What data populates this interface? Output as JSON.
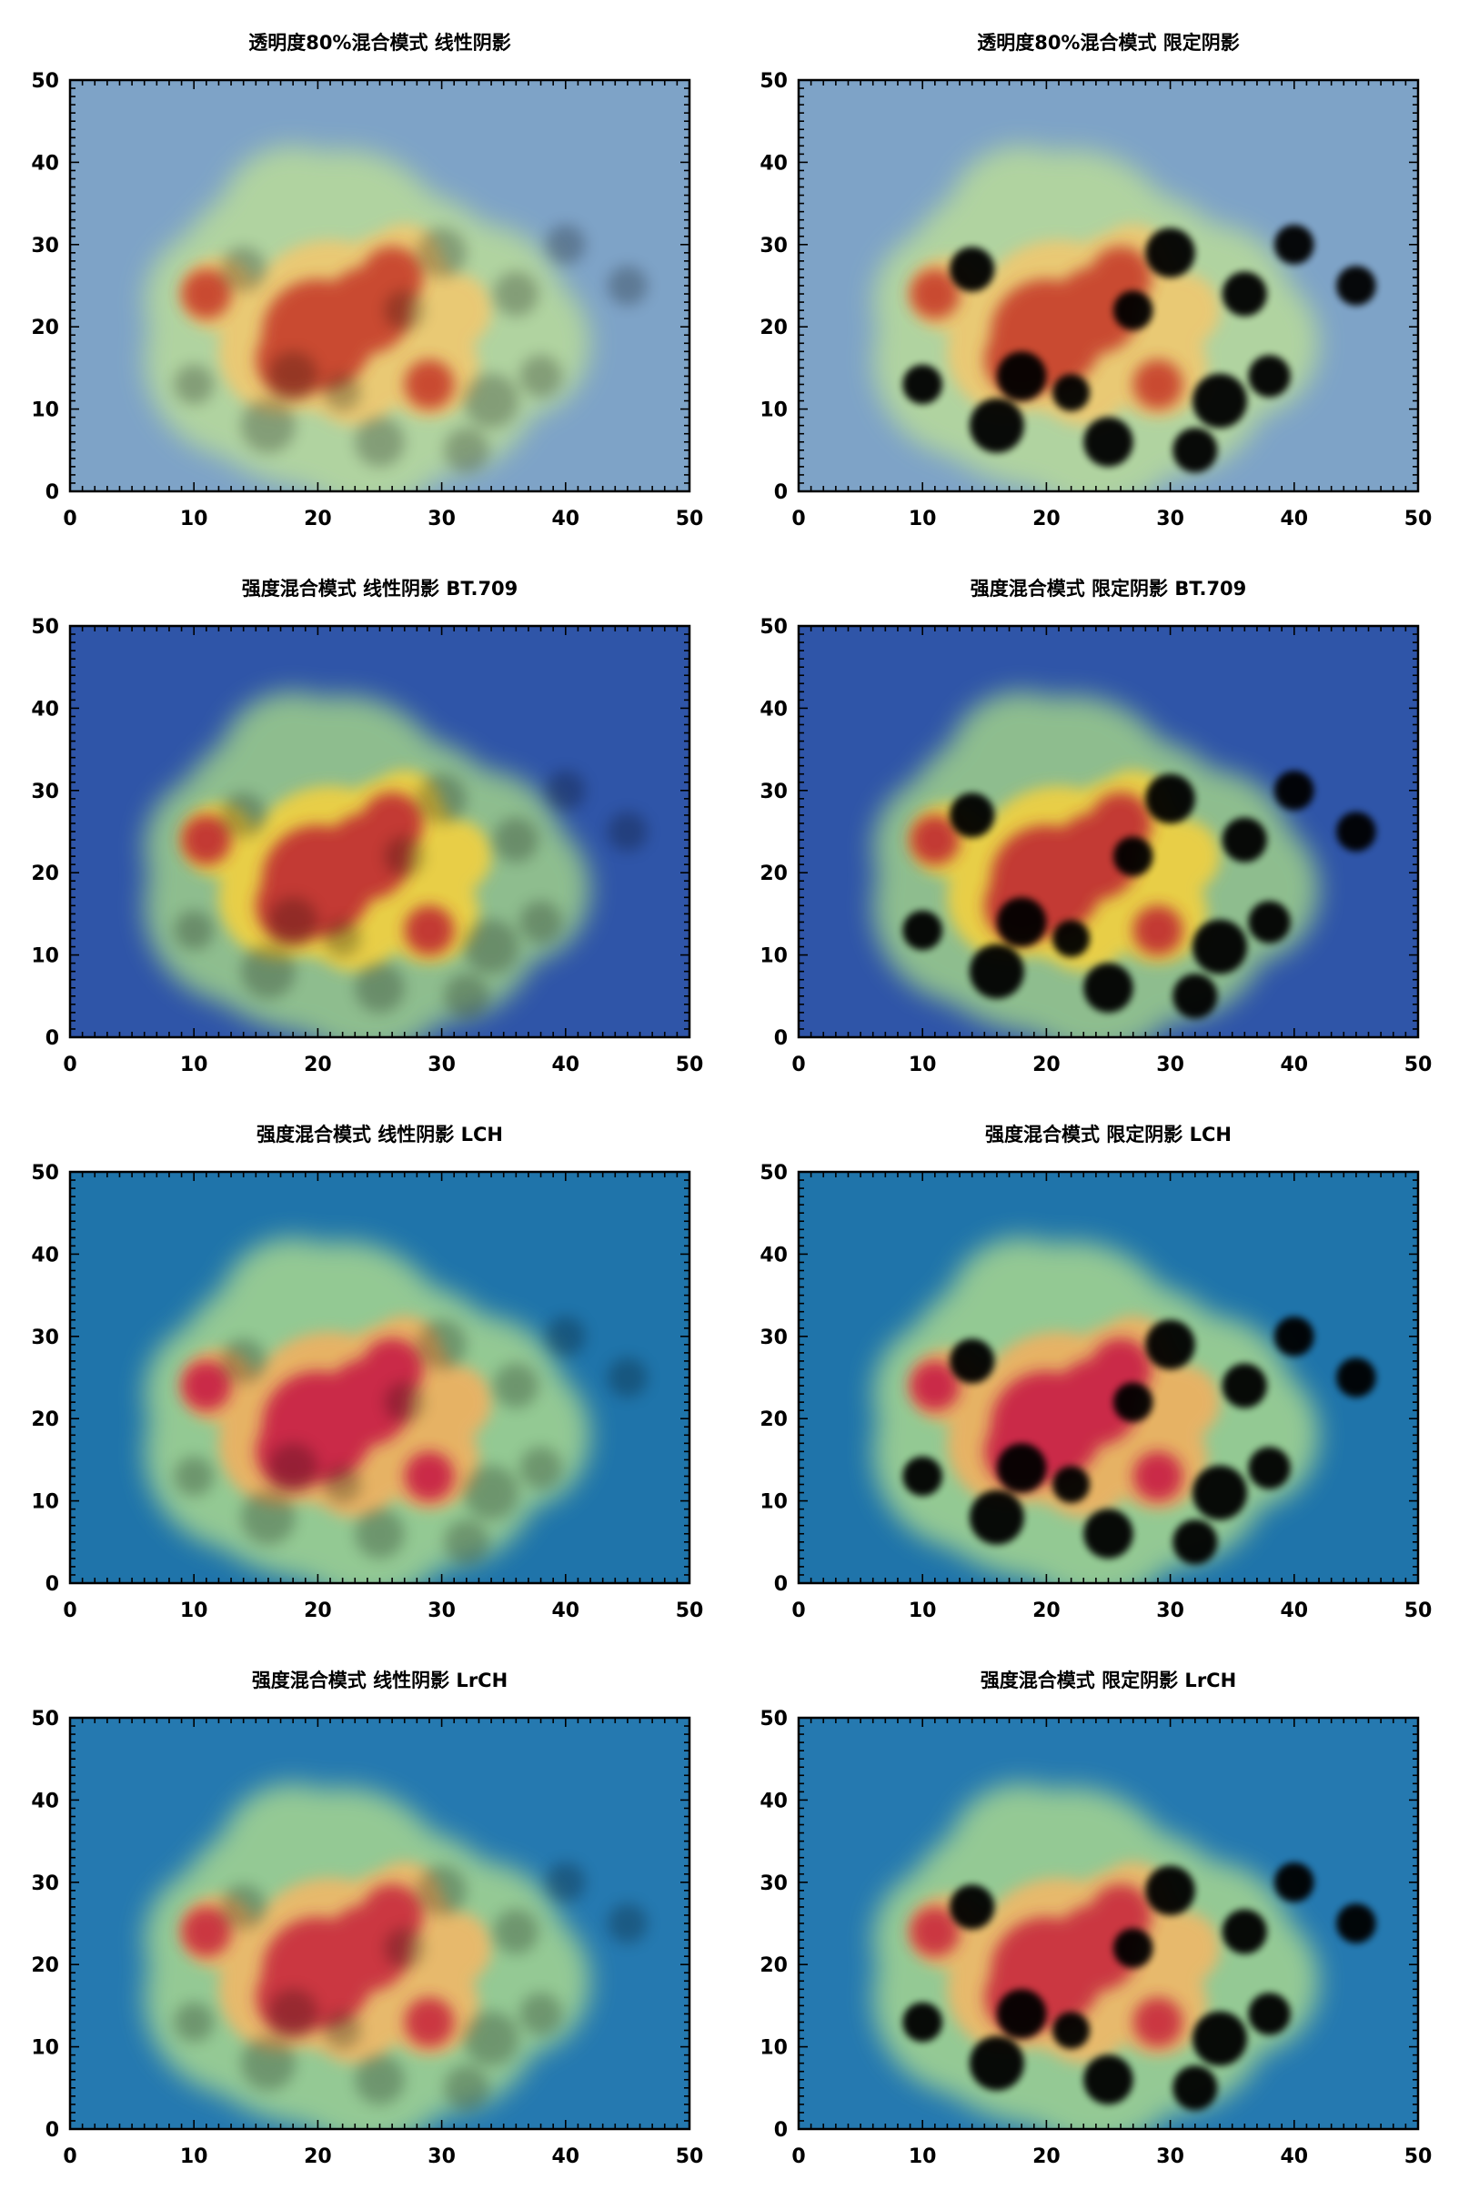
{
  "chart_data": [
    {
      "type": "heatmap",
      "title": "透明度80%混合模式 线性阴影",
      "xlim": [
        0,
        50
      ],
      "ylim": [
        0,
        50
      ],
      "xticks": [
        "0",
        "10",
        "20",
        "30",
        "40",
        "50"
      ],
      "yticks": [
        "0",
        "10",
        "20",
        "30",
        "40",
        "50"
      ],
      "colors": {
        "background": "#7ea3c7",
        "hot": "#c63c2c",
        "warm": "#f0c870",
        "mid": "#b9dc9a"
      },
      "shadow": "linear",
      "blend": "alpha",
      "opacity": 0.8
    },
    {
      "type": "heatmap",
      "title": "透明度80%混合模式 限定阴影",
      "xlim": [
        0,
        50
      ],
      "ylim": [
        0,
        50
      ],
      "xticks": [
        "0",
        "10",
        "20",
        "30",
        "40",
        "50"
      ],
      "yticks": [
        "0",
        "10",
        "20",
        "30",
        "40",
        "50"
      ],
      "colors": {
        "background": "#7ea3c7",
        "hot": "#c63c2c",
        "warm": "#f0c870",
        "mid": "#b9dc9a"
      },
      "shadow": "bounded",
      "blend": "alpha",
      "opacity": 0.8
    },
    {
      "type": "heatmap",
      "title": "强度混合模式 线性阴影 BT.709",
      "xlim": [
        0,
        50
      ],
      "ylim": [
        0,
        50
      ],
      "xticks": [
        "0",
        "10",
        "20",
        "30",
        "40",
        "50"
      ],
      "yticks": [
        "0",
        "10",
        "20",
        "30",
        "40",
        "50"
      ],
      "colors": {
        "background": "#2f55a8",
        "hot": "#c02a30",
        "warm": "#f2d040",
        "mid": "#9fd08a"
      },
      "shadow": "linear",
      "blend": "intensity"
    },
    {
      "type": "heatmap",
      "title": "强度混合模式 限定阴影 BT.709",
      "xlim": [
        0,
        50
      ],
      "ylim": [
        0,
        50
      ],
      "xticks": [
        "0",
        "10",
        "20",
        "30",
        "40",
        "50"
      ],
      "yticks": [
        "0",
        "10",
        "20",
        "30",
        "40",
        "50"
      ],
      "colors": {
        "background": "#2f55a8",
        "hot": "#c02a30",
        "warm": "#f2d040",
        "mid": "#9fd08a"
      },
      "shadow": "bounded",
      "blend": "intensity"
    },
    {
      "type": "heatmap",
      "title": "强度混合模式 线性阴影 LCH",
      "xlim": [
        0,
        50
      ],
      "ylim": [
        0,
        50
      ],
      "xticks": [
        "0",
        "10",
        "20",
        "30",
        "40",
        "50"
      ],
      "yticks": [
        "0",
        "10",
        "20",
        "30",
        "40",
        "50"
      ],
      "colors": {
        "background": "#1f74aa",
        "hot": "#c81e44",
        "warm": "#f0b060",
        "mid": "#a8d890"
      },
      "shadow": "linear",
      "blend": "intensity"
    },
    {
      "type": "heatmap",
      "title": "强度混合模式 限定阴影 LCH",
      "xlim": [
        0,
        50
      ],
      "ylim": [
        0,
        50
      ],
      "xticks": [
        "0",
        "10",
        "20",
        "30",
        "40",
        "50"
      ],
      "yticks": [
        "0",
        "10",
        "20",
        "30",
        "40",
        "50"
      ],
      "colors": {
        "background": "#1f74aa",
        "hot": "#c81e44",
        "warm": "#f0b060",
        "mid": "#a8d890"
      },
      "shadow": "bounded",
      "blend": "intensity"
    },
    {
      "type": "heatmap",
      "title": "强度混合模式 线性阴影 LrCH",
      "xlim": [
        0,
        50
      ],
      "ylim": [
        0,
        50
      ],
      "xticks": [
        "0",
        "10",
        "20",
        "30",
        "40",
        "50"
      ],
      "yticks": [
        "0",
        "10",
        "20",
        "30",
        "40",
        "50"
      ],
      "colors": {
        "background": "#2579b0",
        "hot": "#c82a3c",
        "warm": "#f0b868",
        "mid": "#a8d890"
      },
      "shadow": "linear",
      "blend": "intensity"
    },
    {
      "type": "heatmap",
      "title": "强度混合模式 限定阴影 LrCH",
      "xlim": [
        0,
        50
      ],
      "ylim": [
        0,
        50
      ],
      "xticks": [
        "0",
        "10",
        "20",
        "30",
        "40",
        "50"
      ],
      "yticks": [
        "0",
        "10",
        "20",
        "30",
        "40",
        "50"
      ],
      "colors": {
        "background": "#2579b0",
        "hot": "#c82a3c",
        "warm": "#f0b868",
        "mid": "#a8d890"
      },
      "shadow": "bounded",
      "blend": "intensity"
    }
  ]
}
